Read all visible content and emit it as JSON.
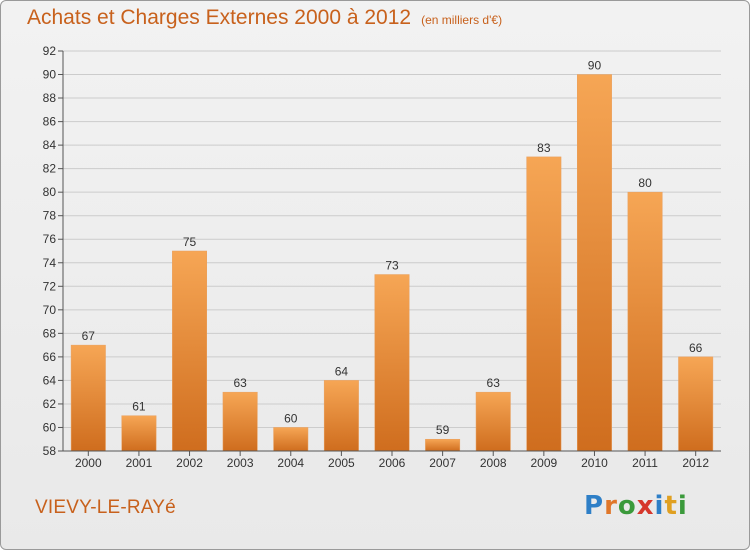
{
  "title": "Achats et Charges Externes 2000 à 2012",
  "subtitle": "(en milliers d'€)",
  "location": "VIEVY-LE-RAYé",
  "logo": {
    "letters": [
      "P",
      "r",
      "o",
      "x",
      "i",
      "t",
      "i"
    ],
    "colors": [
      "#2e7fc7",
      "#e0772a",
      "#3b9a3b",
      "#d6372c",
      "#2e7fc7",
      "#e0a021",
      "#3b9a3b"
    ]
  },
  "colors": {
    "title": "#c8611c",
    "bar_top": "#f6a655",
    "bar_bottom": "#cf6d1e",
    "grid": "#cccccc"
  },
  "chart_data": {
    "type": "bar",
    "title": "Achats et Charges Externes 2000 à 2012",
    "subtitle": "(en milliers d'€)",
    "categories": [
      "2000",
      "2001",
      "2002",
      "2003",
      "2004",
      "2005",
      "2006",
      "2007",
      "2008",
      "2009",
      "2010",
      "2011",
      "2012"
    ],
    "values": [
      67,
      61,
      75,
      63,
      60,
      64,
      73,
      59,
      63,
      83,
      90,
      80,
      66
    ],
    "ylim": [
      58,
      92
    ],
    "yticks": [
      58,
      60,
      62,
      64,
      66,
      68,
      70,
      72,
      74,
      76,
      78,
      80,
      82,
      84,
      86,
      88,
      90,
      92
    ],
    "grid": true,
    "xlabel": "",
    "ylabel": ""
  }
}
